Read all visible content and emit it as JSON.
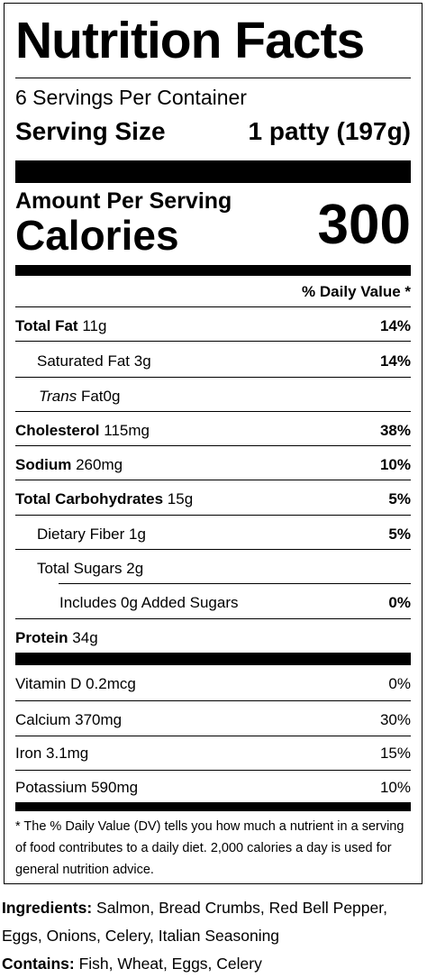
{
  "title": "Nutrition Facts",
  "servings_per_container": "6 Servings Per Container",
  "serving_size_label": "Serving Size",
  "serving_size_value": "1 patty (197g)",
  "amount_per_serving": "Amount Per Serving",
  "calories_label": "Calories",
  "calories_value": "300",
  "daily_value_header": "% Daily Value *",
  "nutrients": {
    "total_fat": {
      "label": "Total Fat",
      "amount": "11g",
      "dv": "14%"
    },
    "saturated_fat": {
      "label": "Saturated Fat",
      "amount": "3g",
      "dv": "14%"
    },
    "trans_fat": {
      "label_italic": "Trans",
      "label": "Fat",
      "amount": "0g"
    },
    "cholesterol": {
      "label": "Cholesterol",
      "amount": "115mg",
      "dv": "38%"
    },
    "sodium": {
      "label": "Sodium",
      "amount": "260mg",
      "dv": "10%"
    },
    "total_carbohydrates": {
      "label": "Total Carbohydrates",
      "amount": "15g",
      "dv": "5%"
    },
    "dietary_fiber": {
      "label": "Dietary Fiber",
      "amount": "1g",
      "dv": "5%"
    },
    "total_sugars": {
      "label": "Total Sugars",
      "amount": "2g"
    },
    "added_sugars": {
      "label": "Includes 0g Added Sugars",
      "dv": "0%"
    },
    "protein": {
      "label": "Protein",
      "amount": "34g"
    }
  },
  "vitamins": {
    "vitamin_d": {
      "label": "Vitamin D 0.2mcg",
      "dv": "0%"
    },
    "calcium": {
      "label": "Calcium 370mg",
      "dv": "30%"
    },
    "iron": {
      "label": "Iron 3.1mg",
      "dv": "15%"
    },
    "potassium": {
      "label": "Potassium 590mg",
      "dv": "10%"
    }
  },
  "footnote": "* The % Daily Value (DV) tells you how much a nutrient in a serving of food contributes to a daily diet. 2,000 calories a day is used for general nutrition advice.",
  "ingredients": {
    "label": "Ingredients:",
    "text": "Salmon, Bread Crumbs, Red Bell Pepper, Eggs, Onions, Celery, Italian Seasoning"
  },
  "contains": {
    "label": "Contains:",
    "text": "Fish, Wheat, Eggs, Celery"
  }
}
